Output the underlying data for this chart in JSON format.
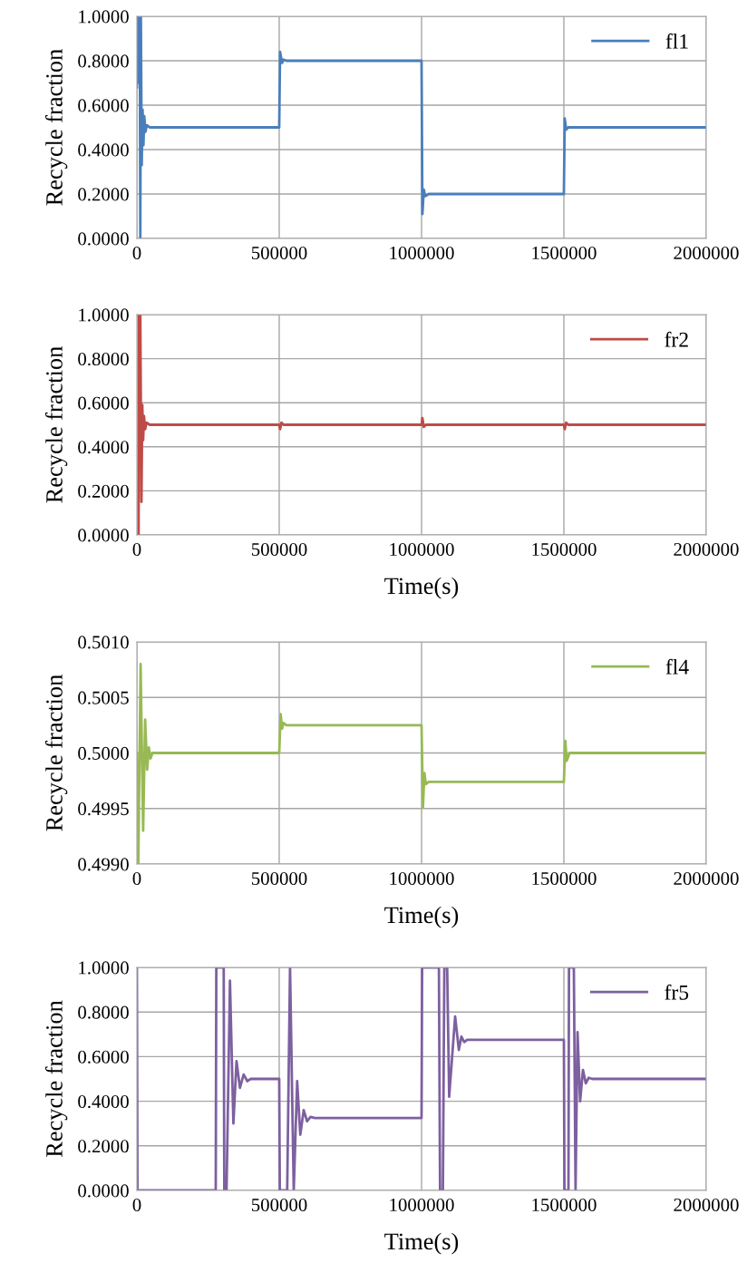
{
  "chart_data": [
    {
      "type": "line",
      "ylabel": "Recycle fraction",
      "xlim": [
        0,
        2000000
      ],
      "xticks": [
        0,
        500000,
        1000000,
        1500000,
        2000000
      ],
      "ylim": [
        0,
        1
      ],
      "yticks": [
        {
          "value": 0,
          "label": "0.0000"
        },
        {
          "value": 0.2,
          "label": "0.2000"
        },
        {
          "value": 0.4,
          "label": "0.4000"
        },
        {
          "value": 0.6,
          "label": "0.6000"
        },
        {
          "value": 0.8,
          "label": "0.8000"
        },
        {
          "value": 1,
          "label": "1.0000"
        }
      ],
      "grid": true,
      "legend": "top right",
      "series": [
        {
          "name": "fl1",
          "color": "#4a7ebb",
          "x": [
            0,
            2000,
            4000,
            6000,
            8000,
            10000,
            12000,
            14000,
            17000,
            20000,
            23000,
            26000,
            30000,
            35000,
            45000,
            500000,
            503000,
            510000,
            515000,
            525000,
            1000000,
            1003000,
            1008000,
            1013000,
            1025000,
            1500000,
            1503000,
            1508000,
            1515000,
            2000000
          ],
          "values": [
            0.68,
            1.0,
            0.7,
            1.0,
            0.7,
            1.0,
            0.0,
            1.0,
            0.33,
            0.58,
            0.42,
            0.55,
            0.48,
            0.51,
            0.5,
            0.5,
            0.84,
            0.79,
            0.805,
            0.8,
            0.8,
            0.11,
            0.22,
            0.19,
            0.2,
            0.2,
            0.54,
            0.49,
            0.5,
            0.5
          ]
        }
      ]
    },
    {
      "type": "line",
      "ylabel": "Recycle fraction",
      "xlabel": "Time(s)",
      "xlim": [
        0,
        2000000
      ],
      "xticks": [
        0,
        500000,
        1000000,
        1500000,
        2000000
      ],
      "ylim": [
        0,
        1
      ],
      "yticks": [
        {
          "value": 0,
          "label": "0.0000"
        },
        {
          "value": 0.2,
          "label": "0.2000"
        },
        {
          "value": 0.4,
          "label": "0.4000"
        },
        {
          "value": 0.6,
          "label": "0.6000"
        },
        {
          "value": 0.8,
          "label": "0.8000"
        },
        {
          "value": 1,
          "label": "1.0000"
        }
      ],
      "grid": true,
      "legend": "top right",
      "series": [
        {
          "name": "fr2",
          "color": "#be4b48",
          "x": [
            0,
            6000,
            7000,
            12000,
            16000,
            19000,
            22000,
            25000,
            29000,
            34000,
            45000,
            500000,
            503000,
            508000,
            515000,
            1000000,
            1003000,
            1008000,
            1015000,
            1500000,
            1503000,
            1508000,
            1515000,
            2000000
          ],
          "values": [
            0,
            0,
            1.0,
            1.0,
            0.15,
            0.59,
            0.43,
            0.54,
            0.48,
            0.51,
            0.5,
            0.5,
            0.48,
            0.51,
            0.5,
            0.5,
            0.53,
            0.49,
            0.5,
            0.5,
            0.48,
            0.51,
            0.5,
            0.5
          ]
        }
      ]
    },
    {
      "type": "line",
      "ylabel": "Recycle fraction",
      "xlabel": "Time(s)",
      "xlim": [
        0,
        2000000
      ],
      "xticks": [
        0,
        500000,
        1000000,
        1500000,
        2000000
      ],
      "ylim": [
        0.499,
        0.501
      ],
      "yticks": [
        {
          "value": 0.499,
          "label": "0.4990"
        },
        {
          "value": 0.4995,
          "label": "0.4995"
        },
        {
          "value": 0.5,
          "label": "0.5000"
        },
        {
          "value": 0.5005,
          "label": "0.5005"
        },
        {
          "value": 0.501,
          "label": "0.5010"
        }
      ],
      "grid": true,
      "legend": "top right",
      "series": [
        {
          "name": "fl4",
          "color": "#98b954",
          "x": [
            0,
            5000,
            13000,
            22000,
            29000,
            36000,
            42000,
            48000,
            55000,
            500000,
            505000,
            510000,
            515000,
            525000,
            1000000,
            1005000,
            1010000,
            1015000,
            1025000,
            1500000,
            1505000,
            1510000,
            1520000,
            2000000
          ],
          "values": [
            0.5,
            0.499,
            0.5008,
            0.4993,
            0.5003,
            0.49985,
            0.50005,
            0.49995,
            0.5,
            0.5,
            0.50035,
            0.50022,
            0.50027,
            0.50025,
            0.50025,
            0.49951,
            0.49982,
            0.49972,
            0.49974,
            0.49974,
            0.50011,
            0.49993,
            0.5,
            0.5
          ]
        }
      ]
    },
    {
      "type": "line",
      "ylabel": "Recycle fraction",
      "xlabel": "Time(s)",
      "xlim": [
        0,
        2000000
      ],
      "xticks": [
        0,
        500000,
        1000000,
        1500000,
        2000000
      ],
      "ylim": [
        0,
        1
      ],
      "yticks": [
        {
          "value": 0,
          "label": "0.0000"
        },
        {
          "value": 0.2,
          "label": "0.2000"
        },
        {
          "value": 0.4,
          "label": "0.4000"
        },
        {
          "value": 0.6,
          "label": "0.6000"
        },
        {
          "value": 0.8,
          "label": "0.8000"
        },
        {
          "value": 1,
          "label": "1.0000"
        }
      ],
      "grid": true,
      "legend": "top right",
      "series": [
        {
          "name": "fr5",
          "color": "#7d60a0",
          "x": [
            0,
            2000,
            277000,
            279000,
            305000,
            307000,
            315000,
            327000,
            339000,
            350000,
            362000,
            375000,
            388000,
            400000,
            500000,
            502000,
            528000,
            538000,
            551000,
            563000,
            574000,
            586000,
            598000,
            610000,
            625000,
            1000000,
            1002000,
            1061000,
            1065000,
            1075000,
            1080000,
            1090000,
            1097000,
            1118000,
            1131000,
            1140000,
            1150000,
            1160000,
            1500000,
            1502000,
            1516000,
            1518000,
            1535000,
            1541000,
            1548000,
            1557000,
            1567000,
            1577000,
            1587000,
            1600000,
            2000000
          ],
          "values": [
            1.0,
            0,
            0,
            1.0,
            1.0,
            0,
            0,
            0.94,
            0.3,
            0.58,
            0.46,
            0.52,
            0.49,
            0.5,
            0.5,
            0,
            0,
            1.0,
            0,
            0.49,
            0.25,
            0.36,
            0.31,
            0.33,
            0.325,
            0.325,
            1.0,
            1.0,
            0,
            0,
            1.0,
            1.0,
            0.42,
            0.78,
            0.63,
            0.69,
            0.665,
            0.675,
            0.675,
            0,
            0,
            1.0,
            1.0,
            0,
            0.71,
            0.4,
            0.54,
            0.48,
            0.505,
            0.5,
            0.5
          ]
        }
      ]
    }
  ]
}
